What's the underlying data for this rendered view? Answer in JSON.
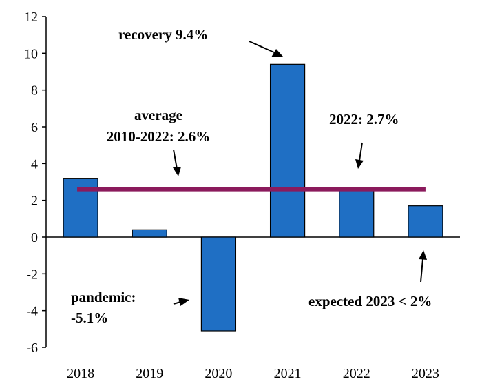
{
  "chart_data": {
    "type": "bar",
    "categories": [
      "2018",
      "2019",
      "2020",
      "2021",
      "2022",
      "2023"
    ],
    "values": [
      3.2,
      0.4,
      -5.1,
      9.4,
      2.7,
      1.7
    ],
    "ylim": [
      -6,
      12
    ],
    "yticks": [
      "12",
      "10",
      "8",
      "6",
      "4",
      "2",
      "0",
      "-2",
      "-4",
      "-6"
    ],
    "grid": false,
    "bar_color": "#1f6fc4",
    "reference_line": {
      "value": 2.6,
      "color": "#8b1a5c"
    },
    "annotations": {
      "recovery": "recovery 9.4%",
      "average_line1": "average",
      "average_line2": "2010-2022: 2.6%",
      "y2022": "2022: 2.7%",
      "pandemic_line1": "pandemic:",
      "pandemic_line2": "-5.1%",
      "expected": "expected 2023 < 2%"
    }
  }
}
